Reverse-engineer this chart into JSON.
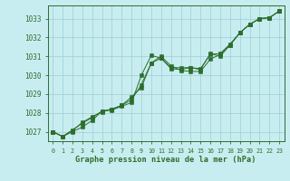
{
  "title": "Graphe pression niveau de la mer (hPa)",
  "background_color": "#c8edf0",
  "grid_color": "#9ecdd4",
  "line_color": "#2d6e2d",
  "marker_color": "#2d6e2d",
  "xlim": [
    -0.5,
    23.5
  ],
  "ylim": [
    1026.5,
    1033.7
  ],
  "xticks": [
    0,
    1,
    2,
    3,
    4,
    5,
    6,
    7,
    8,
    9,
    10,
    11,
    12,
    13,
    14,
    15,
    16,
    17,
    18,
    19,
    20,
    21,
    22,
    23
  ],
  "yticks": [
    1027,
    1028,
    1029,
    1030,
    1031,
    1032,
    1033
  ],
  "series1_x": [
    0,
    1,
    2,
    3,
    4,
    5,
    6,
    7,
    8,
    9,
    10,
    11,
    12,
    13,
    14,
    15,
    16,
    17,
    18,
    19,
    20,
    21,
    22,
    23
  ],
  "series1_y": [
    1027.0,
    1026.75,
    1027.0,
    1027.25,
    1027.6,
    1028.1,
    1028.15,
    1028.35,
    1028.55,
    1030.0,
    1031.05,
    1030.9,
    1030.35,
    1030.3,
    1030.4,
    1030.3,
    1031.15,
    1031.0,
    1031.6,
    1032.25,
    1032.7,
    1033.0,
    1033.05,
    1033.4
  ],
  "series2_x": [
    0,
    1,
    2,
    3,
    4,
    5,
    6,
    7,
    8,
    9,
    10,
    11,
    12,
    13,
    14,
    15,
    16,
    17,
    18,
    19,
    20,
    21,
    22,
    23
  ],
  "series2_y": [
    1027.0,
    1026.75,
    1027.05,
    1027.5,
    1027.8,
    1028.05,
    1028.2,
    1028.4,
    1028.85,
    1029.35,
    1030.65,
    1031.0,
    1030.5,
    1030.25,
    1030.2,
    1030.2,
    1030.85,
    1031.1,
    1031.6,
    1032.25,
    1032.7,
    1033.0,
    1033.05,
    1033.4
  ],
  "series3_x": [
    0,
    1,
    2,
    3,
    4,
    5,
    6,
    7,
    8,
    9,
    10,
    11,
    12,
    13,
    14,
    15,
    16,
    17,
    18,
    19,
    20,
    21,
    22,
    23
  ],
  "series3_y": [
    1027.0,
    1026.75,
    1027.1,
    1027.45,
    1027.75,
    1028.1,
    1028.2,
    1028.4,
    1028.7,
    1029.5,
    1030.65,
    1030.9,
    1030.4,
    1030.4,
    1030.4,
    1030.35,
    1031.1,
    1031.15,
    1031.65,
    1032.25,
    1032.7,
    1033.0,
    1033.05,
    1033.4
  ]
}
